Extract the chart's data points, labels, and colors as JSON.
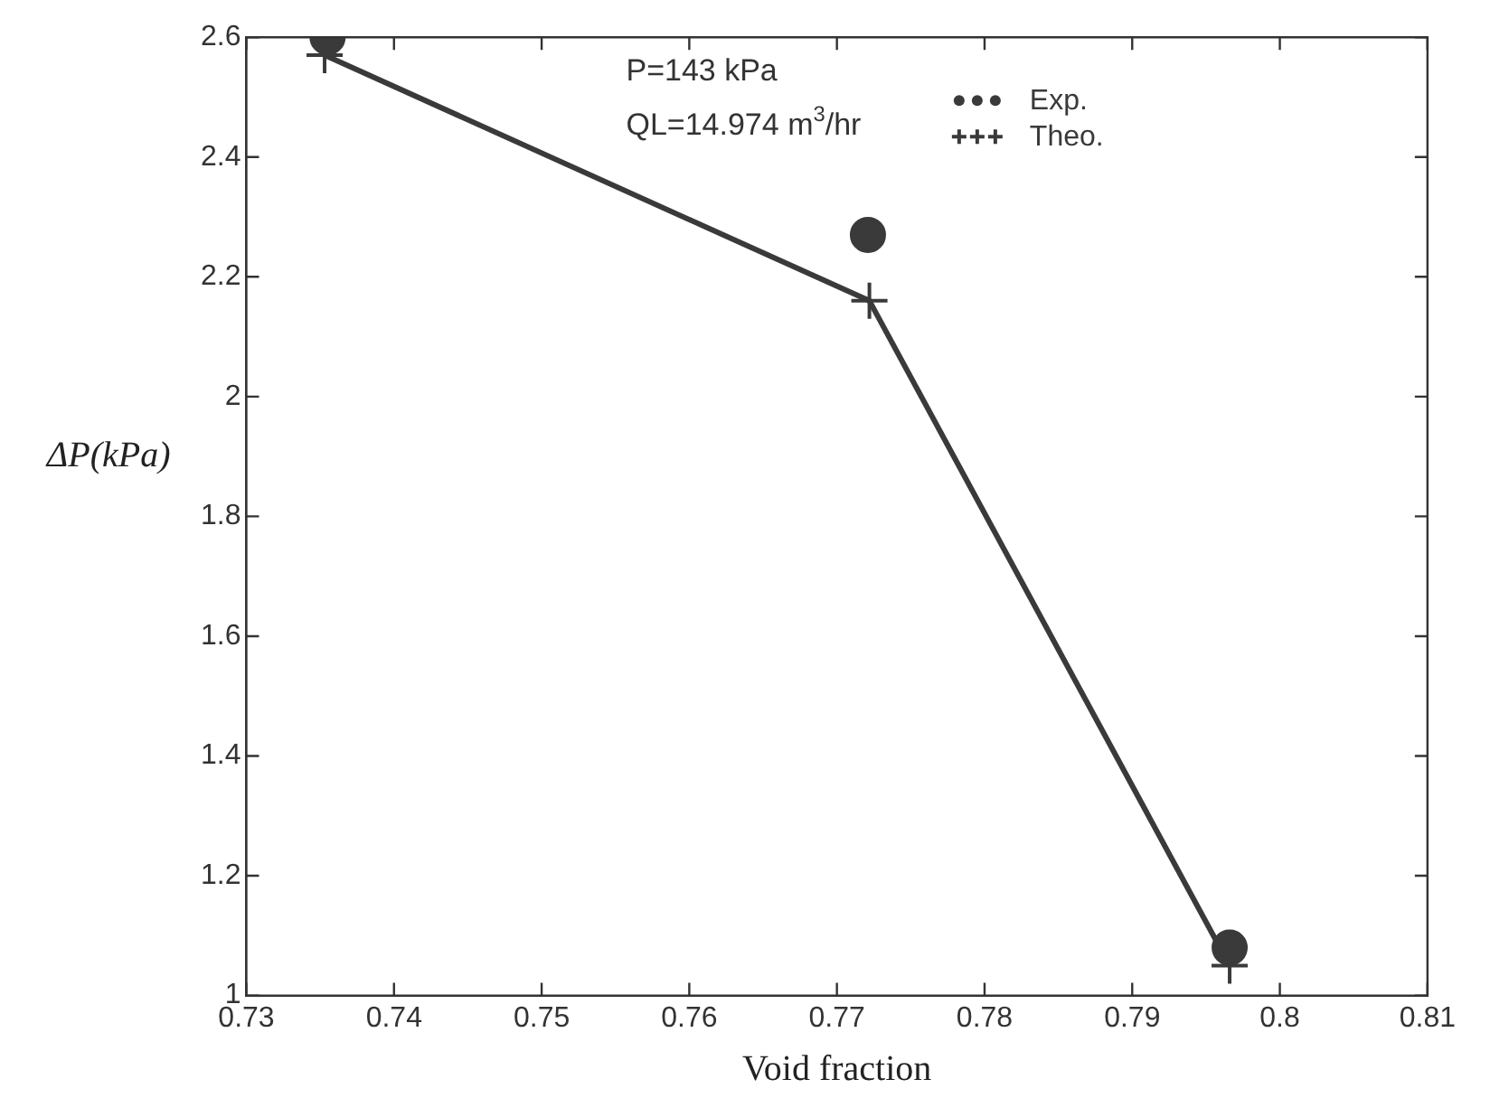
{
  "chart_data": {
    "type": "line",
    "xlabel": "Void fraction",
    "ylabel": "ΔP(kPa)",
    "annotations": [
      "P=143 kPa",
      "QL=14.974 m$^{3}$/hr"
    ],
    "xlim": [
      0.73,
      0.81
    ],
    "xticks": [
      0.73,
      0.74,
      0.75,
      0.76,
      0.77,
      0.78,
      0.79,
      0.8,
      0.81
    ],
    "ylim": [
      1,
      2.6
    ],
    "yticks": [
      1,
      1.2,
      1.4,
      1.6,
      1.8,
      2,
      2.2,
      2.4,
      2.6
    ],
    "grid": false,
    "legend": "top right",
    "series": [
      {
        "name": "Exp.",
        "type": "scatter",
        "marker": "circle",
        "color": "#3a3a3a",
        "x": [
          0.7355,
          0.7721,
          0.7966
        ],
        "values": [
          2.6,
          2.27,
          1.08
        ]
      },
      {
        "name": "Theo.",
        "type": "line",
        "marker": "cross",
        "line_style": "solid",
        "color": "#3a3a3a",
        "x": [
          0.7353,
          0.7722,
          0.7966
        ],
        "values": [
          2.57,
          2.16,
          1.05
        ]
      }
    ]
  }
}
